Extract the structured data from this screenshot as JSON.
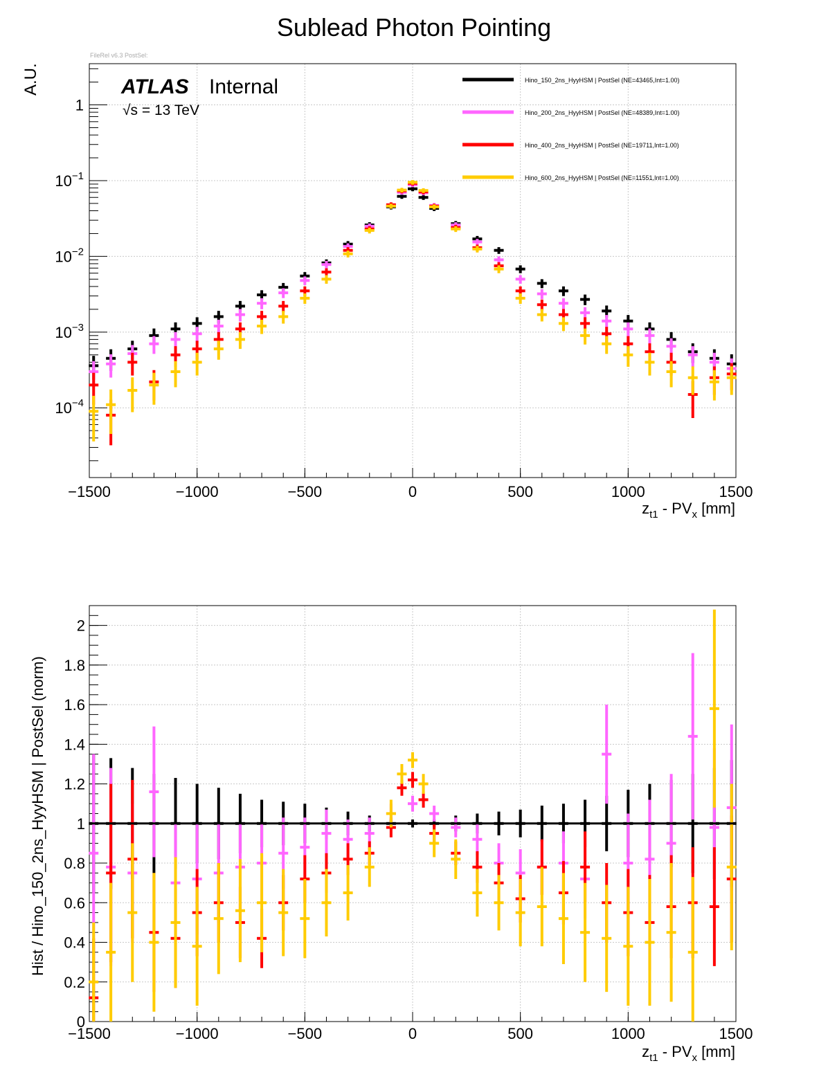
{
  "title": "Sublead Photon Pointing",
  "meta_tag": "FileRel v6.3 PostSel:",
  "atlas_label": "ATLAS",
  "atlas_status": "Internal",
  "energy_label": "√s = 13 TeV",
  "colors": {
    "Hino_150": "#000000",
    "Hino_200": "#ff66ff",
    "Hino_400": "#ff0000",
    "Hino_600": "#ffcc00",
    "grid": "#c8c8c8"
  },
  "chart_data": [
    {
      "type": "scatter",
      "name": "upper",
      "yscale": "log",
      "xlim": [
        -1500,
        1500
      ],
      "ylim": [
        1.2e-05,
        3.5
      ],
      "xlabel_main": "z",
      "xlabel_sub": "t1",
      "xlabel_mid": " - PV",
      "xlabel_sub2": "x",
      "xlabel_end": " [mm]",
      "ylabel": "A.U.",
      "xticks": [
        -1500,
        -1000,
        -500,
        0,
        500,
        1000,
        1500
      ],
      "xtick_labels": [
        "−1500",
        "−1000",
        "−500",
        "0",
        "500",
        "1000",
        "1500"
      ],
      "yticks": [
        1,
        0.1,
        0.01,
        0.001,
        0.0001
      ],
      "ytick_base": [
        "1",
        "10",
        "10",
        "10",
        "10"
      ],
      "ytick_exp": [
        "",
        "−1",
        "−2",
        "−3",
        "−4"
      ],
      "legend": [
        {
          "key": "Hino_150",
          "label": "Hino_150_2ns_HyyHSM | PostSel   (NE=43465,Int=1.00)"
        },
        {
          "key": "Hino_200",
          "label": "Hino_200_2ns_HyyHSM | PostSel   (NE=48389,Int=1.00)"
        },
        {
          "key": "Hino_400",
          "label": "Hino_400_2ns_HyyHSM | PostSel   (NE=19711,Int=1.00)"
        },
        {
          "key": "Hino_600",
          "label": "Hino_600_2ns_HyyHSM | PostSel   (NE=11551,Int=1.00)"
        }
      ],
      "series": [
        {
          "key": "Hino_150",
          "x": [
            -1480,
            -1400,
            -1300,
            -1200,
            -1100,
            -1000,
            -900,
            -800,
            -700,
            -600,
            -500,
            -400,
            -300,
            -200,
            -100,
            -50,
            0,
            50,
            100,
            200,
            300,
            400,
            500,
            600,
            700,
            800,
            900,
            1000,
            1100,
            1200,
            1300,
            1400,
            1480
          ],
          "y": [
            0.00036,
            0.00045,
            0.0006,
            0.0009,
            0.0011,
            0.0013,
            0.0016,
            0.0022,
            0.0031,
            0.0039,
            0.0055,
            0.0082,
            0.0145,
            0.026,
            0.045,
            0.062,
            0.078,
            0.06,
            0.043,
            0.027,
            0.017,
            0.012,
            0.0068,
            0.0044,
            0.0035,
            0.0027,
            0.0019,
            0.0014,
            0.0011,
            0.0008,
            0.00055,
            0.00045,
            0.00038
          ]
        },
        {
          "key": "Hino_200",
          "x": [
            -1480,
            -1400,
            -1300,
            -1200,
            -1100,
            -1000,
            -900,
            -800,
            -700,
            -600,
            -500,
            -400,
            -300,
            -200,
            -100,
            -50,
            0,
            50,
            100,
            200,
            300,
            400,
            500,
            600,
            700,
            800,
            900,
            1000,
            1100,
            1200,
            1300,
            1400,
            1480
          ],
          "y": [
            0.0003,
            0.00038,
            0.00052,
            0.0007,
            0.0008,
            0.00095,
            0.0012,
            0.0017,
            0.0024,
            0.0033,
            0.0048,
            0.0078,
            0.0135,
            0.025,
            0.047,
            0.07,
            0.088,
            0.069,
            0.047,
            0.026,
            0.0155,
            0.009,
            0.005,
            0.0032,
            0.0024,
            0.0018,
            0.0014,
            0.0011,
            0.0009,
            0.00065,
            0.0005,
            0.0004,
            0.00033
          ]
        },
        {
          "key": "Hino_400",
          "x": [
            -1480,
            -1400,
            -1300,
            -1200,
            -1100,
            -1000,
            -900,
            -800,
            -700,
            -600,
            -500,
            -400,
            -300,
            -200,
            -100,
            -50,
            0,
            50,
            100,
            200,
            300,
            400,
            500,
            600,
            700,
            800,
            900,
            1000,
            1100,
            1200,
            1300,
            1400,
            1480
          ],
          "y": [
            0.0002,
            8e-05,
            0.0004,
            0.00022,
            0.0005,
            0.0006,
            0.0008,
            0.0011,
            0.0016,
            0.0022,
            0.0035,
            0.0062,
            0.012,
            0.023,
            0.048,
            0.073,
            0.092,
            0.071,
            0.046,
            0.024,
            0.013,
            0.0075,
            0.0035,
            0.0023,
            0.0017,
            0.0013,
            0.00095,
            0.0007,
            0.00055,
            0.0004,
            0.00015,
            0.00025,
            0.00028
          ]
        },
        {
          "key": "Hino_600",
          "x": [
            -1480,
            -1400,
            -1300,
            -1200,
            -1100,
            -1000,
            -900,
            -800,
            -700,
            -600,
            -500,
            -400,
            -300,
            -200,
            -100,
            -50,
            0,
            50,
            100,
            200,
            300,
            400,
            500,
            600,
            700,
            800,
            900,
            1000,
            1100,
            1200,
            1300,
            1400,
            1480
          ],
          "y": [
            9e-05,
            0.00011,
            0.00017,
            0.0002,
            0.0003,
            0.0004,
            0.0006,
            0.0008,
            0.0012,
            0.0016,
            0.0028,
            0.005,
            0.0108,
            0.022,
            0.046,
            0.075,
            0.095,
            0.074,
            0.045,
            0.023,
            0.0125,
            0.0068,
            0.0028,
            0.0017,
            0.0013,
            0.0009,
            0.0007,
            0.0005,
            0.0004,
            0.0003,
            0.00025,
            0.00022,
            0.00025
          ]
        }
      ]
    },
    {
      "type": "scatter",
      "name": "ratio",
      "yscale": "linear",
      "xlim": [
        -1500,
        1500
      ],
      "ylim": [
        0,
        2.1
      ],
      "xlabel_main": "z",
      "xlabel_sub": "t1",
      "xlabel_mid": " - PV",
      "xlabel_sub2": "x",
      "xlabel_end": " [mm]",
      "ylabel": "Hist / Hino_150_2ns_HyyHSM | PostSel   (norm)",
      "xticks": [
        -1500,
        -1000,
        -500,
        0,
        500,
        1000,
        1500
      ],
      "xtick_labels": [
        "−1500",
        "−1000",
        "−500",
        "0",
        "500",
        "1000",
        "1500"
      ],
      "yticks": [
        0,
        0.2,
        0.4,
        0.6,
        0.8,
        1,
        1.2,
        1.4,
        1.6,
        1.8,
        2
      ],
      "ytick_labels": [
        "0",
        "0.2",
        "0.4",
        "0.6",
        "0.8",
        "1",
        "1.2",
        "1.4",
        "1.6",
        "1.8",
        "2"
      ],
      "series": [
        {
          "key": "Hino_150",
          "x": [
            -1480,
            -1400,
            -1300,
            -1200,
            -1100,
            -1000,
            -900,
            -800,
            -700,
            -600,
            -500,
            -400,
            -300,
            -200,
            -100,
            0,
            100,
            200,
            300,
            400,
            500,
            600,
            700,
            800,
            900,
            1000,
            1100,
            1200,
            1300,
            1400,
            1480
          ],
          "y": [
            1,
            1,
            1,
            1,
            1,
            1,
            1,
            1,
            1,
            1,
            1,
            1,
            1,
            1,
            1,
            1,
            1,
            1,
            1,
            1,
            1,
            1,
            1,
            1,
            1,
            1,
            1,
            1,
            1,
            1,
            1
          ],
          "err": [
            0.35,
            0.33,
            0.28,
            0.25,
            0.23,
            0.2,
            0.18,
            0.15,
            0.12,
            0.11,
            0.1,
            0.08,
            0.06,
            0.04,
            0.02,
            0.02,
            0.02,
            0.04,
            0.05,
            0.06,
            0.07,
            0.09,
            0.1,
            0.12,
            0.14,
            0.17,
            0.2,
            0.22,
            0.25,
            0.28,
            0.32
          ]
        },
        {
          "key": "Hino_200",
          "x": [
            -1480,
            -1400,
            -1300,
            -1200,
            -1100,
            -1000,
            -900,
            -800,
            -700,
            -600,
            -500,
            -400,
            -300,
            -200,
            -100,
            0,
            100,
            200,
            300,
            400,
            500,
            600,
            700,
            800,
            900,
            1000,
            1100,
            1200,
            1300,
            1400,
            1480
          ],
          "y": [
            0.85,
            0.78,
            0.75,
            1.16,
            0.7,
            0.72,
            0.75,
            0.78,
            0.8,
            0.85,
            0.88,
            0.95,
            0.92,
            0.95,
            1.05,
            1.1,
            1.05,
            0.98,
            0.92,
            0.8,
            0.75,
            0.78,
            0.8,
            0.72,
            1.35,
            0.8,
            0.82,
            0.9,
            1.44,
            0.98,
            1.08
          ],
          "err": [
            0.5,
            0.5,
            0.35,
            0.33,
            0.3,
            0.28,
            0.25,
            0.22,
            0.2,
            0.18,
            0.15,
            0.12,
            0.1,
            0.08,
            0.05,
            0.04,
            0.04,
            0.05,
            0.08,
            0.1,
            0.12,
            0.14,
            0.16,
            0.2,
            0.25,
            0.25,
            0.3,
            0.35,
            0.42,
            0.4,
            0.42
          ]
        },
        {
          "key": "Hino_400",
          "x": [
            -1480,
            -1400,
            -1300,
            -1200,
            -1100,
            -1000,
            -900,
            -800,
            -700,
            -600,
            -500,
            -400,
            -300,
            -200,
            -100,
            -50,
            0,
            50,
            100,
            200,
            300,
            400,
            500,
            600,
            700,
            800,
            900,
            1000,
            1100,
            1200,
            1300,
            1400,
            1480
          ],
          "y": [
            0.12,
            0.75,
            0.82,
            0.45,
            0.42,
            0.55,
            0.6,
            0.5,
            0.42,
            0.6,
            0.72,
            0.75,
            0.82,
            0.85,
            0.98,
            1.18,
            1.22,
            1.12,
            0.95,
            0.85,
            0.78,
            0.7,
            0.62,
            0.78,
            0.65,
            0.78,
            0.6,
            0.55,
            0.5,
            0.58,
            0.6,
            0.58,
            0.72
          ],
          "err": [
            0.3,
            0.45,
            0.4,
            0.3,
            0.25,
            0.22,
            0.2,
            0.18,
            0.15,
            0.14,
            0.12,
            0.1,
            0.08,
            0.06,
            0.05,
            0.04,
            0.04,
            0.04,
            0.05,
            0.06,
            0.08,
            0.1,
            0.12,
            0.14,
            0.16,
            0.18,
            0.2,
            0.22,
            0.24,
            0.26,
            0.28,
            0.3,
            0.32
          ]
        },
        {
          "key": "Hino_600",
          "x": [
            -1480,
            -1400,
            -1300,
            -1200,
            -1100,
            -1000,
            -900,
            -800,
            -700,
            -600,
            -500,
            -400,
            -300,
            -200,
            -100,
            -50,
            0,
            50,
            100,
            200,
            300,
            400,
            500,
            600,
            700,
            800,
            900,
            1000,
            1100,
            1200,
            1300,
            1400,
            1480
          ],
          "y": [
            0.2,
            0.35,
            0.55,
            0.4,
            0.5,
            0.38,
            0.52,
            0.56,
            0.6,
            0.55,
            0.52,
            0.6,
            0.65,
            0.78,
            1.05,
            1.25,
            1.32,
            1.2,
            0.9,
            0.82,
            0.65,
            0.6,
            0.55,
            0.58,
            0.52,
            0.45,
            0.42,
            0.38,
            0.4,
            0.45,
            0.35,
            1.58,
            0.78
          ],
          "err": [
            0.3,
            0.35,
            0.35,
            0.35,
            0.33,
            0.3,
            0.28,
            0.26,
            0.25,
            0.22,
            0.2,
            0.17,
            0.14,
            0.1,
            0.07,
            0.05,
            0.04,
            0.05,
            0.07,
            0.1,
            0.12,
            0.14,
            0.17,
            0.2,
            0.23,
            0.25,
            0.27,
            0.3,
            0.32,
            0.35,
            0.38,
            0.5,
            0.42
          ]
        }
      ]
    }
  ]
}
